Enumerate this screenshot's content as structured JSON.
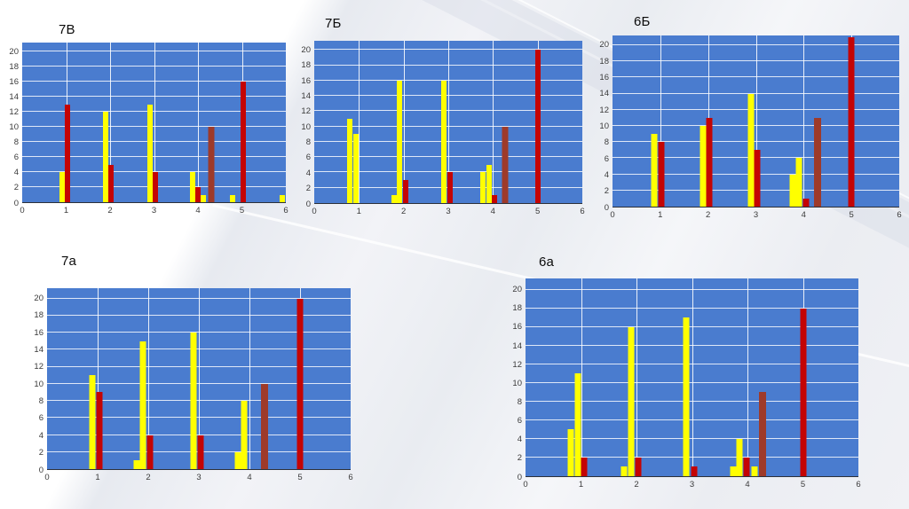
{
  "colors": {
    "plot_background": "#4a7ccf",
    "yellow": "#ffff00",
    "red": "#c40404",
    "dark": "#9e3a2a",
    "gridline": "#ffffff",
    "axis_text": "#3a3a3a"
  },
  "chart_data": [
    {
      "id": "7v",
      "type": "bar",
      "title": "7В",
      "xlabel": "",
      "ylabel": "",
      "xlim": [
        0,
        6
      ],
      "ylim": [
        0,
        21.2
      ],
      "xticks": [
        0,
        1,
        2,
        3,
        4,
        5,
        6
      ],
      "yticks": [
        0,
        2,
        4,
        6,
        8,
        10,
        12,
        14,
        16,
        18,
        20
      ],
      "grid": true,
      "legend": "none",
      "bars": [
        {
          "x": 0.9,
          "v": 4,
          "c": "yellow"
        },
        {
          "x": 1.03,
          "v": 13,
          "c": "red"
        },
        {
          "x": 1.9,
          "v": 12,
          "c": "yellow"
        },
        {
          "x": 2.03,
          "v": 5,
          "c": "red"
        },
        {
          "x": 2.9,
          "v": 13,
          "c": "yellow"
        },
        {
          "x": 3.03,
          "v": 4,
          "c": "red"
        },
        {
          "x": 3.87,
          "v": 4,
          "c": "yellow"
        },
        {
          "x": 4.0,
          "v": 2,
          "c": "red"
        },
        {
          "x": 4.13,
          "v": 1,
          "c": "yellow"
        },
        {
          "x": 4.3,
          "v": 10,
          "c": "dark"
        },
        {
          "x": 4.78,
          "v": 1,
          "c": "yellow"
        },
        {
          "x": 5.03,
          "v": 16,
          "c": "red"
        },
        {
          "x": 5.92,
          "v": 1,
          "c": "yellow"
        }
      ]
    },
    {
      "id": "7b",
      "type": "bar",
      "title": "7Б",
      "xlabel": "",
      "ylabel": "",
      "xlim": [
        0,
        6
      ],
      "ylim": [
        0,
        21.2
      ],
      "xticks": [
        0,
        1,
        2,
        3,
        4,
        5,
        6
      ],
      "yticks": [
        0,
        2,
        4,
        6,
        8,
        10,
        12,
        14,
        16,
        18,
        20
      ],
      "grid": true,
      "legend": "none",
      "bars": [
        {
          "x": 0.8,
          "v": 11,
          "c": "yellow"
        },
        {
          "x": 0.93,
          "v": 9,
          "c": "yellow"
        },
        {
          "x": 1.78,
          "v": 1,
          "c": "yellow"
        },
        {
          "x": 1.91,
          "v": 16,
          "c": "yellow"
        },
        {
          "x": 2.05,
          "v": 3,
          "c": "red"
        },
        {
          "x": 2.9,
          "v": 16,
          "c": "yellow"
        },
        {
          "x": 3.03,
          "v": 4,
          "c": "red"
        },
        {
          "x": 3.78,
          "v": 4,
          "c": "yellow"
        },
        {
          "x": 3.91,
          "v": 5,
          "c": "yellow"
        },
        {
          "x": 4.04,
          "v": 1,
          "c": "red"
        },
        {
          "x": 4.28,
          "v": 10,
          "c": "dark"
        },
        {
          "x": 5.0,
          "v": 20,
          "c": "red"
        }
      ]
    },
    {
      "id": "6b",
      "type": "bar",
      "title": "6Б",
      "xlabel": "",
      "ylabel": "",
      "xlim": [
        0,
        6
      ],
      "ylim": [
        0,
        21.2
      ],
      "xticks": [
        0,
        1,
        2,
        3,
        4,
        5,
        6
      ],
      "yticks": [
        0,
        2,
        4,
        6,
        8,
        10,
        12,
        14,
        16,
        18,
        20
      ],
      "grid": true,
      "legend": "none",
      "bars": [
        {
          "x": 0.88,
          "v": 9,
          "c": "yellow"
        },
        {
          "x": 1.02,
          "v": 8,
          "c": "red"
        },
        {
          "x": 1.9,
          "v": 10,
          "c": "yellow"
        },
        {
          "x": 2.03,
          "v": 11,
          "c": "red"
        },
        {
          "x": 2.9,
          "v": 14,
          "c": "yellow"
        },
        {
          "x": 3.03,
          "v": 7,
          "c": "red"
        },
        {
          "x": 3.78,
          "v": 4,
          "c": "yellow"
        },
        {
          "x": 3.91,
          "v": 6,
          "c": "yellow"
        },
        {
          "x": 4.05,
          "v": 1,
          "c": "red"
        },
        {
          "x": 4.3,
          "v": 11,
          "c": "dark"
        },
        {
          "x": 5.0,
          "v": 21,
          "c": "red"
        }
      ]
    },
    {
      "id": "7a",
      "type": "bar",
      "title": "7а",
      "xlabel": "",
      "ylabel": "",
      "xlim": [
        0,
        6
      ],
      "ylim": [
        0,
        21.2
      ],
      "xticks": [
        0,
        1,
        2,
        3,
        4,
        5,
        6
      ],
      "yticks": [
        0,
        2,
        4,
        6,
        8,
        10,
        12,
        14,
        16,
        18,
        20
      ],
      "grid": true,
      "legend": "none",
      "bars": [
        {
          "x": 0.9,
          "v": 11,
          "c": "yellow"
        },
        {
          "x": 1.03,
          "v": 9,
          "c": "red"
        },
        {
          "x": 1.78,
          "v": 1,
          "c": "yellow"
        },
        {
          "x": 1.9,
          "v": 15,
          "c": "yellow"
        },
        {
          "x": 2.03,
          "v": 4,
          "c": "red"
        },
        {
          "x": 2.9,
          "v": 16,
          "c": "yellow"
        },
        {
          "x": 3.03,
          "v": 4,
          "c": "red"
        },
        {
          "x": 3.78,
          "v": 2,
          "c": "yellow"
        },
        {
          "x": 3.9,
          "v": 8,
          "c": "yellow"
        },
        {
          "x": 4.3,
          "v": 10,
          "c": "dark"
        },
        {
          "x": 5.0,
          "v": 20,
          "c": "red"
        }
      ]
    },
    {
      "id": "6a",
      "type": "bar",
      "title": "6а",
      "xlabel": "",
      "ylabel": "",
      "xlim": [
        0,
        6
      ],
      "ylim": [
        0,
        21.2
      ],
      "xticks": [
        0,
        1,
        2,
        3,
        4,
        5,
        6
      ],
      "yticks": [
        0,
        2,
        4,
        6,
        8,
        10,
        12,
        14,
        16,
        18,
        20
      ],
      "grid": true,
      "legend": "none",
      "bars": [
        {
          "x": 0.82,
          "v": 5,
          "c": "yellow"
        },
        {
          "x": 0.94,
          "v": 11,
          "c": "yellow"
        },
        {
          "x": 1.06,
          "v": 2,
          "c": "red"
        },
        {
          "x": 1.78,
          "v": 1,
          "c": "yellow"
        },
        {
          "x": 1.9,
          "v": 16,
          "c": "yellow"
        },
        {
          "x": 2.03,
          "v": 2,
          "c": "red"
        },
        {
          "x": 2.9,
          "v": 17,
          "c": "yellow"
        },
        {
          "x": 3.04,
          "v": 1,
          "c": "red"
        },
        {
          "x": 3.74,
          "v": 1,
          "c": "yellow"
        },
        {
          "x": 3.86,
          "v": 4,
          "c": "yellow"
        },
        {
          "x": 3.98,
          "v": 2,
          "c": "red"
        },
        {
          "x": 4.12,
          "v": 1,
          "c": "yellow"
        },
        {
          "x": 4.27,
          "v": 9,
          "c": "dark"
        },
        {
          "x": 5.0,
          "v": 18,
          "c": "red"
        }
      ]
    }
  ]
}
